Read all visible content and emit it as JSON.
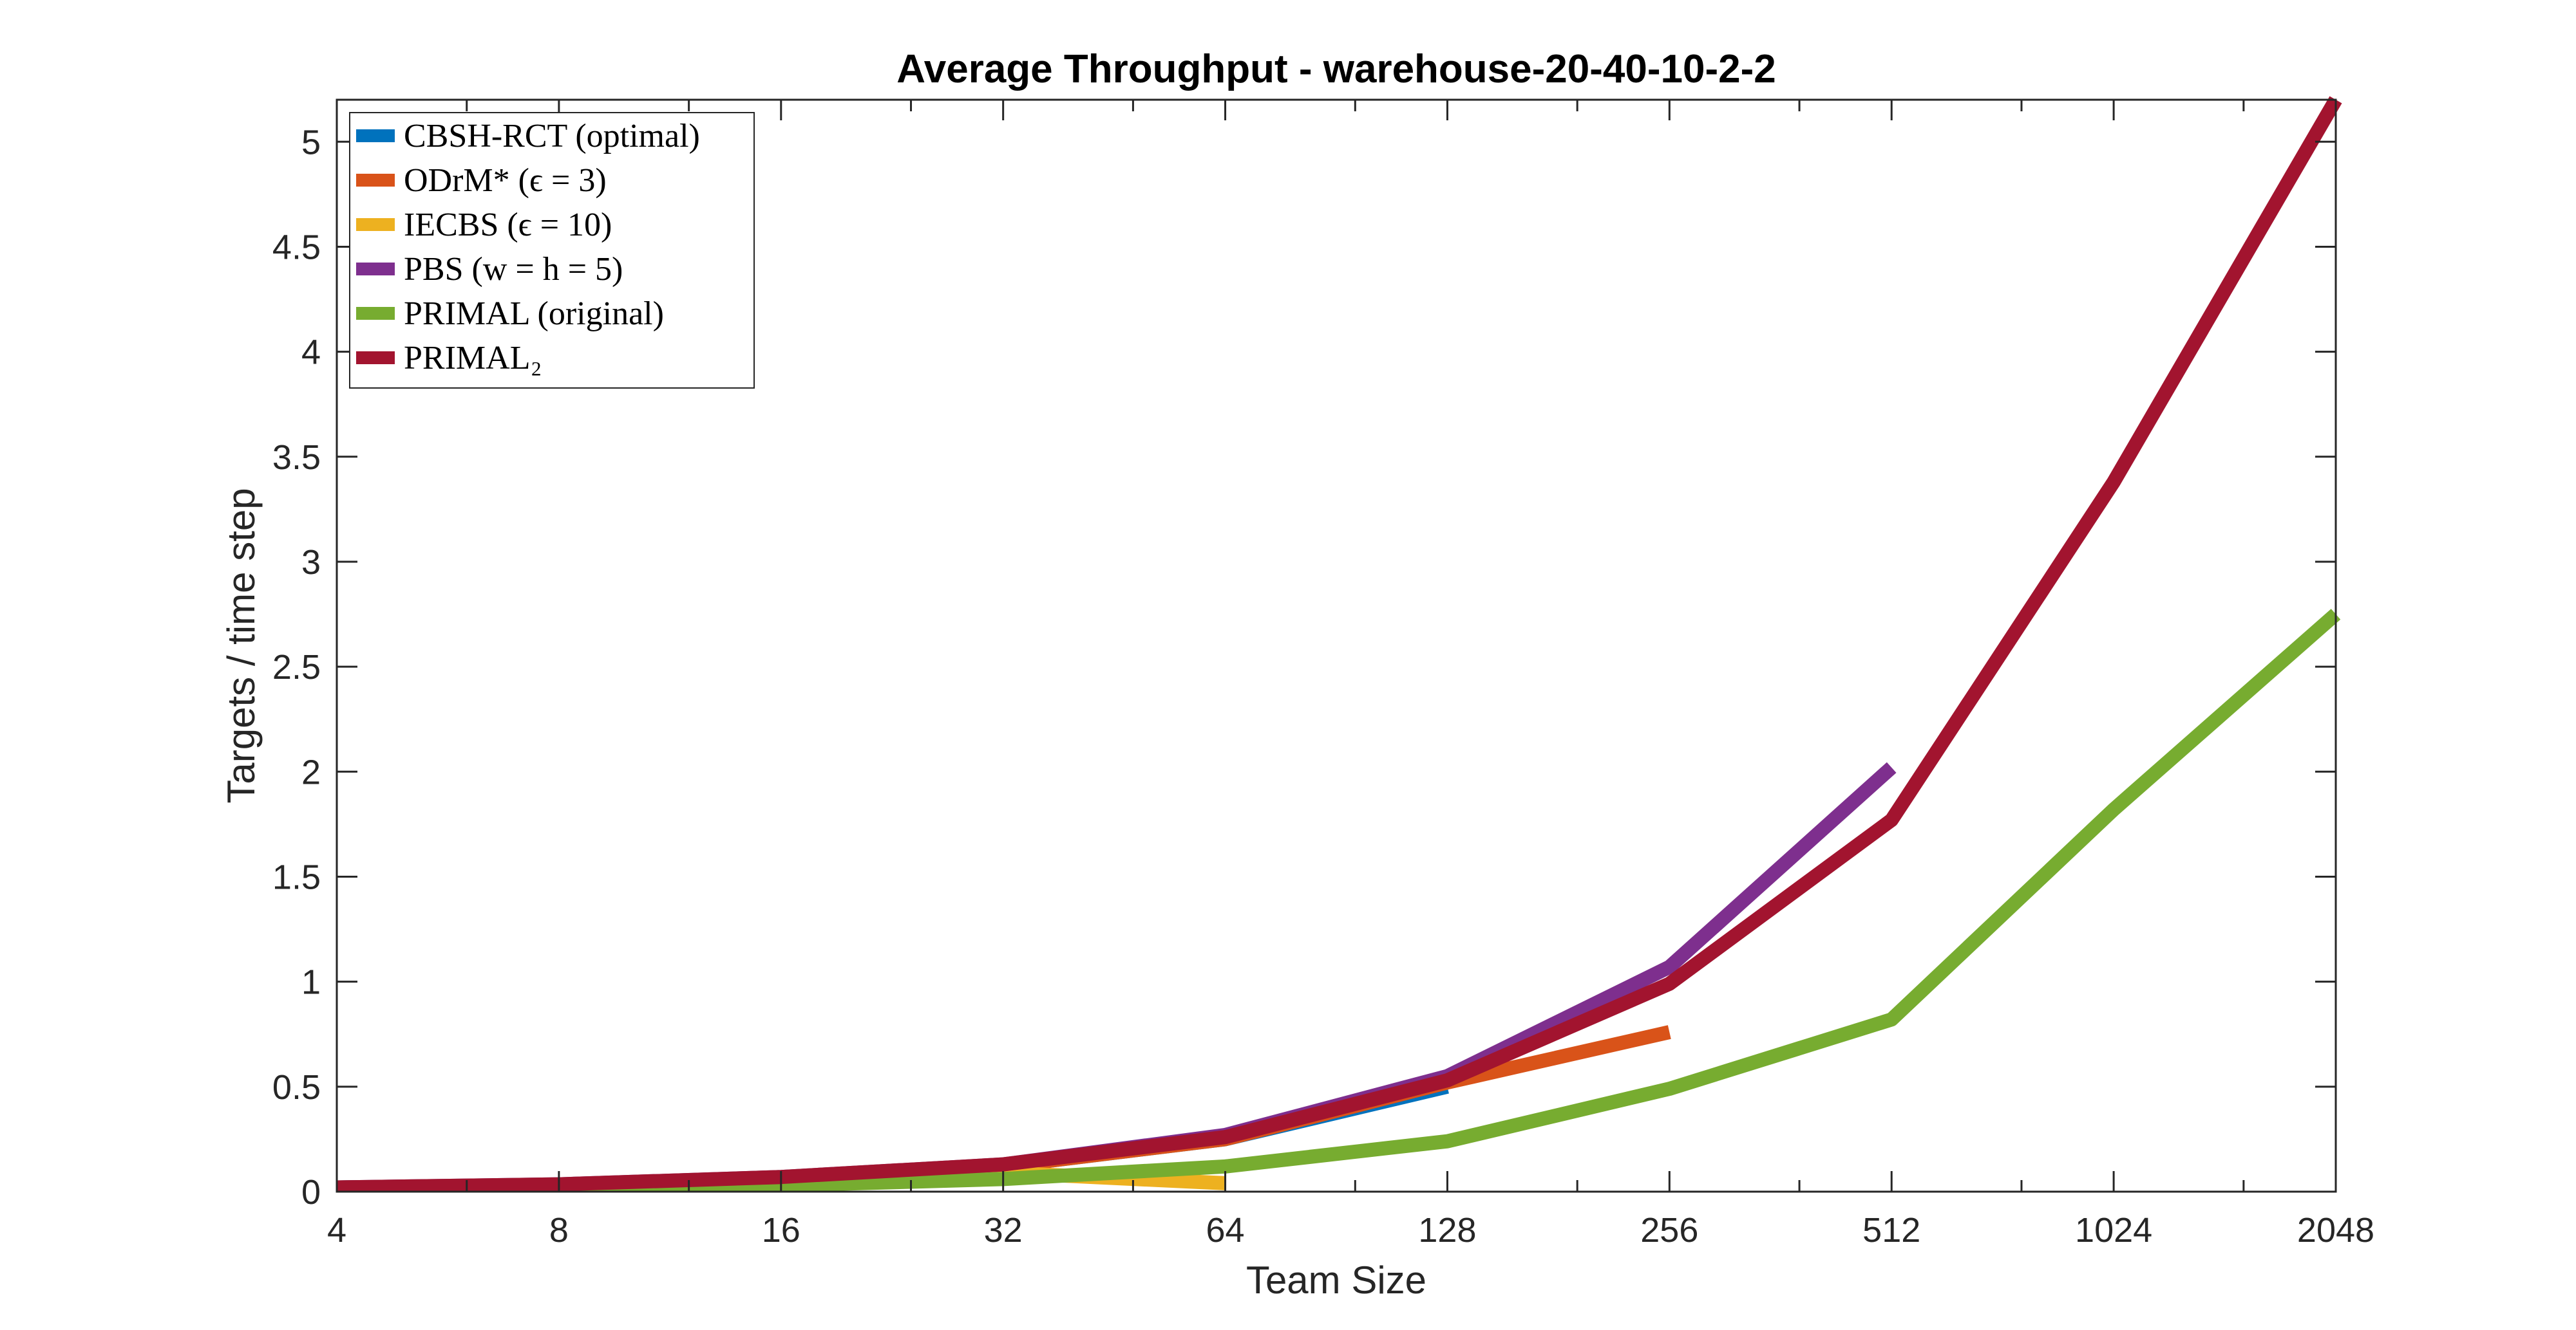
{
  "chart_data": {
    "type": "line",
    "title": "Average Throughput - warehouse-20-40-10-2-2",
    "xlabel": "Team Size",
    "ylabel": "Targets / time step",
    "x_scale": "log2",
    "xlim": [
      4,
      2048
    ],
    "ylim": [
      0,
      5.2
    ],
    "x_ticks": [
      4,
      8,
      16,
      32,
      64,
      128,
      256,
      512,
      1024,
      2048
    ],
    "x_tick_labels": [
      "4",
      "8",
      "16",
      "32",
      "64",
      "128",
      "256",
      "512",
      "1024",
      "2048"
    ],
    "y_ticks": [
      0,
      0.5,
      1,
      1.5,
      2,
      2.5,
      3,
      3.5,
      4,
      4.5,
      5
    ],
    "y_tick_labels": [
      "0",
      "0.5",
      "1",
      "1.5",
      "2",
      "2.5",
      "3",
      "3.5",
      "4",
      "4.5",
      "5"
    ],
    "grid": false,
    "legend_position": "top-left",
    "series": [
      {
        "name": "CBSH-RCT (optimal)",
        "color": "#0072BD",
        "x": [
          4,
          8,
          16,
          32,
          64,
          128
        ],
        "y": [
          0.02,
          0.03,
          0.06,
          0.12,
          0.25,
          0.5
        ]
      },
      {
        "name": "ODrM* (ϵ = 3)",
        "color": "#D95319",
        "x": [
          4,
          8,
          16,
          32,
          64,
          128,
          256
        ],
        "y": [
          0.02,
          0.03,
          0.06,
          0.12,
          0.25,
          0.52,
          0.76
        ]
      },
      {
        "name": "IECBS (ϵ = 10)",
        "color": "#EDB120",
        "x": [
          4,
          8,
          16,
          32,
          64
        ],
        "y": [
          0.01,
          0.02,
          0.05,
          0.09,
          0.04
        ]
      },
      {
        "name": "PBS (w = h = 5)",
        "color": "#7E2F8E",
        "x": [
          4,
          8,
          16,
          32,
          64,
          128,
          256,
          512
        ],
        "y": [
          0.02,
          0.035,
          0.07,
          0.13,
          0.27,
          0.55,
          1.07,
          2.02
        ]
      },
      {
        "name": "PRIMAL (original)",
        "color": "#77AC30",
        "x": [
          4,
          8,
          16,
          32,
          64,
          128,
          256,
          512,
          1024,
          2048
        ],
        "y": [
          0.01,
          0.02,
          0.03,
          0.06,
          0.12,
          0.24,
          0.49,
          0.82,
          1.82,
          2.75
        ]
      },
      {
        "name": "PRIMAL₂",
        "color": "#A2142F",
        "x": [
          4,
          8,
          16,
          32,
          64,
          128,
          256,
          512,
          1024,
          2048
        ],
        "y": [
          0.02,
          0.035,
          0.07,
          0.13,
          0.26,
          0.53,
          0.99,
          1.77,
          3.38,
          5.2
        ]
      }
    ]
  }
}
